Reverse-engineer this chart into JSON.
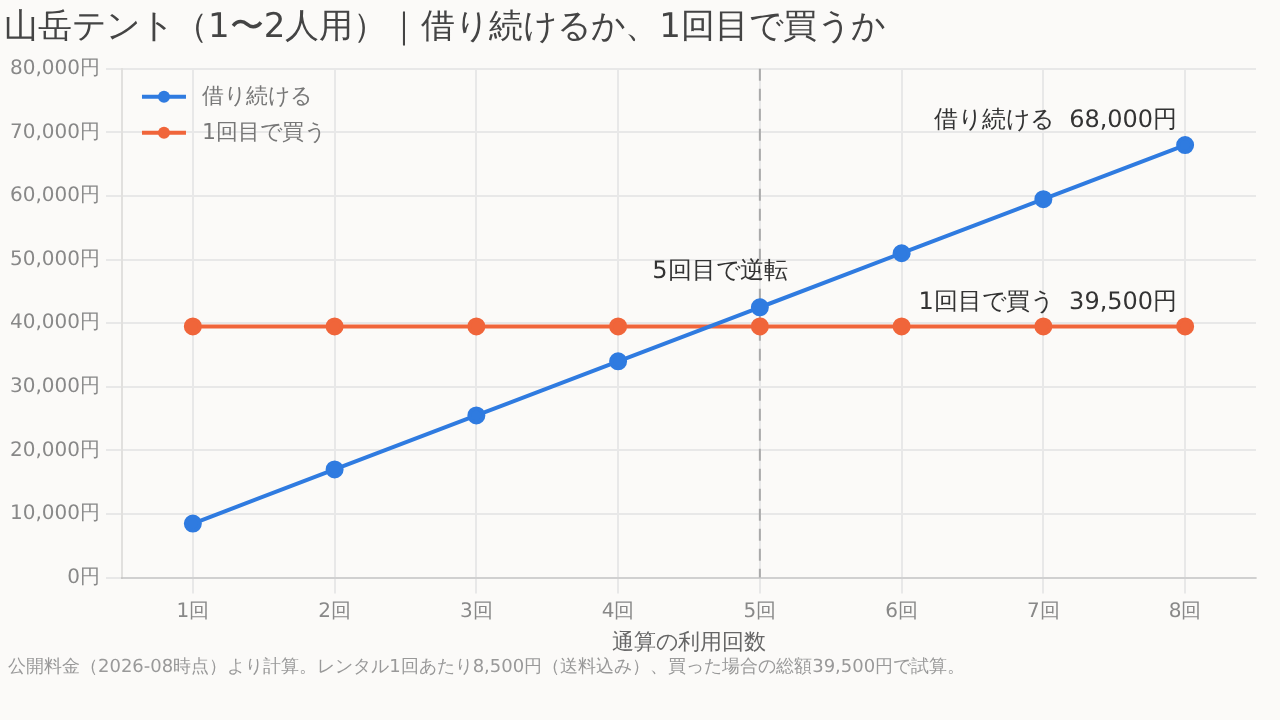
{
  "chart_data": {
    "type": "line",
    "title": "山岳テント（1〜2人用）｜借り続けるか、1回目で買うか",
    "xlabel": "通算の利用回数",
    "categories": [
      "1回",
      "2回",
      "3回",
      "4回",
      "5回",
      "6回",
      "7回",
      "8回"
    ],
    "series": [
      {
        "name": "借り続ける",
        "color": "#2f7be0",
        "values": [
          8500,
          17000,
          25500,
          34000,
          42500,
          51000,
          59500,
          68000
        ]
      },
      {
        "name": "1回目で買う",
        "color": "#f0653a",
        "values": [
          39500,
          39500,
          39500,
          39500,
          39500,
          39500,
          39500,
          39500
        ]
      }
    ],
    "ylim": [
      0,
      80000
    ],
    "yticks": [
      {
        "value": 0,
        "label": "0円"
      },
      {
        "value": 10000,
        "label": "10,000円"
      },
      {
        "value": 20000,
        "label": "20,000円"
      },
      {
        "value": 30000,
        "label": "30,000円"
      },
      {
        "value": 40000,
        "label": "40,000円"
      },
      {
        "value": 50000,
        "label": "50,000円"
      },
      {
        "value": 60000,
        "label": "60,000円"
      },
      {
        "value": 70000,
        "label": "70,000円"
      },
      {
        "value": 80000,
        "label": "80,000円"
      }
    ],
    "ref_lines": [
      {
        "axis": "x",
        "value": "5回",
        "color": "#aaaaaa",
        "line_style": "dashed"
      }
    ],
    "annotations": [
      {
        "text": "5回目で逆転",
        "x": "5回",
        "y": 42500
      },
      {
        "text": "借り続ける  68,000円",
        "x": "8回",
        "y": 68000
      },
      {
        "text": "1回目で買う  39,500円",
        "x": "8回",
        "y": 39500
      },
      "公開料金（2026-08時点）より計算。レンタル1回あたり8,500円（送料込み）、買った場合の総額39,500円で試算。"
    ],
    "grid": true,
    "legend": "top left",
    "marker": "circle",
    "line_style": "solid"
  }
}
